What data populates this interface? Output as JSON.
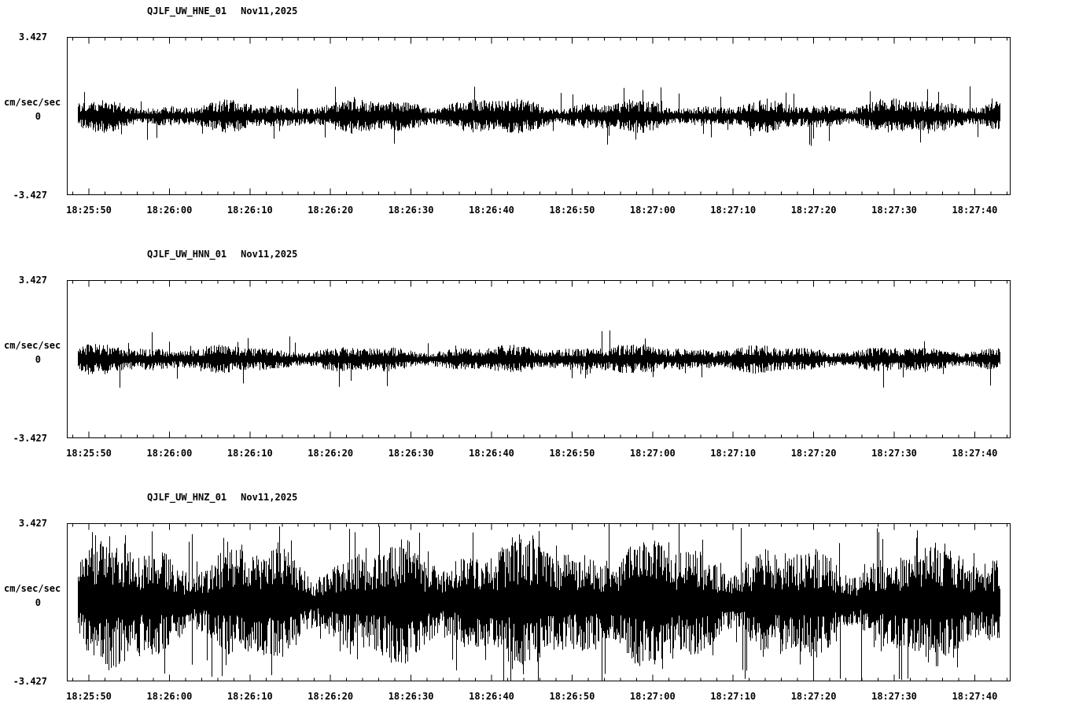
{
  "colors": {
    "trace": "#000000",
    "background": "#ffffff"
  },
  "panels": [
    {
      "title": "QJLF_UW_HNE_01",
      "date": "Nov11,2025",
      "units": "cm/sec/sec",
      "y_max_label": "3.427",
      "y_zero_label": "0",
      "y_min_label": "-3.427",
      "x_ticks": [
        "18:25:50",
        "18:26:00",
        "18:26:10",
        "18:26:20",
        "18:26:30",
        "18:26:40",
        "18:26:50",
        "18:27:00",
        "18:27:10",
        "18:27:20",
        "18:27:30",
        "18:27:40"
      ],
      "waveform": {
        "seed": 101,
        "base_amplitude": 0.38,
        "envelope_variation": 0.55,
        "spike_probability": 0.02,
        "spike_max": 1.3
      }
    },
    {
      "title": "QJLF_UW_HNN_01",
      "date": "Nov11,2025",
      "units": "cm/sec/sec",
      "y_max_label": "3.427",
      "y_zero_label": "0",
      "y_min_label": "-3.427",
      "x_ticks": [
        "18:25:50",
        "18:26:00",
        "18:26:10",
        "18:26:20",
        "18:26:30",
        "18:26:40",
        "18:26:50",
        "18:27:00",
        "18:27:10",
        "18:27:20",
        "18:27:30",
        "18:27:40"
      ],
      "waveform": {
        "seed": 202,
        "base_amplitude": 0.33,
        "envelope_variation": 0.45,
        "spike_probability": 0.012,
        "spike_max": 1.25
      }
    },
    {
      "title": "QJLF_UW_HNZ_01",
      "date": "Nov11,2025",
      "units": "cm/sec/sec",
      "y_max_label": "3.427",
      "y_zero_label": "0",
      "y_min_label": "-3.427",
      "x_ticks": [
        "18:25:50",
        "18:26:00",
        "18:26:10",
        "18:26:20",
        "18:26:30",
        "18:26:40",
        "18:26:50",
        "18:27:00",
        "18:27:10",
        "18:27:20",
        "18:27:30",
        "18:27:40"
      ],
      "waveform": {
        "seed": 303,
        "base_amplitude": 1.45,
        "envelope_variation": 0.5,
        "spike_probability": 0.045,
        "spike_max": 3.5
      }
    }
  ],
  "chart_data": [
    {
      "type": "line",
      "title": "QJLF_UW_HNE_01   Nov11,2025",
      "xlabel": "",
      "ylabel": "cm/sec/sec",
      "ylim": [
        -3.427,
        3.427
      ],
      "y_tick_labels": [
        "3.427",
        "0",
        "-3.427"
      ],
      "x_tick_labels": [
        "18:25:50",
        "18:26:00",
        "18:26:10",
        "18:26:20",
        "18:26:30",
        "18:26:40",
        "18:26:50",
        "18:27:00",
        "18:27:10",
        "18:27:20",
        "18:27:30",
        "18:27:40"
      ],
      "grid": false,
      "legend_position": "none",
      "series": [
        {
          "name": "QJLF_UW_HNE_01",
          "description": "continuous zero-mean seismic acceleration noise trace",
          "mean": 0,
          "typical_peak_amplitude": 0.45,
          "max_peak_amplitude": 1.5
        }
      ]
    },
    {
      "type": "line",
      "title": "QJLF_UW_HNN_01   Nov11,2025",
      "xlabel": "",
      "ylabel": "cm/sec/sec",
      "ylim": [
        -3.427,
        3.427
      ],
      "y_tick_labels": [
        "3.427",
        "0",
        "-3.427"
      ],
      "x_tick_labels": [
        "18:25:50",
        "18:26:00",
        "18:26:10",
        "18:26:20",
        "18:26:30",
        "18:26:40",
        "18:26:50",
        "18:27:00",
        "18:27:10",
        "18:27:20",
        "18:27:30",
        "18:27:40"
      ],
      "grid": false,
      "legend_position": "none",
      "series": [
        {
          "name": "QJLF_UW_HNN_01",
          "description": "continuous zero-mean seismic acceleration noise trace",
          "mean": 0,
          "typical_peak_amplitude": 0.4,
          "max_peak_amplitude": 1.3
        }
      ]
    },
    {
      "type": "line",
      "title": "QJLF_UW_HNZ_01   Nov11,2025",
      "xlabel": "",
      "ylabel": "cm/sec/sec",
      "ylim": [
        -3.427,
        3.427
      ],
      "y_tick_labels": [
        "3.427",
        "0",
        "-3.427"
      ],
      "x_tick_labels": [
        "18:25:50",
        "18:26:00",
        "18:26:10",
        "18:26:20",
        "18:26:30",
        "18:26:40",
        "18:26:50",
        "18:27:00",
        "18:27:10",
        "18:27:20",
        "18:27:30",
        "18:27:40"
      ],
      "grid": false,
      "legend_position": "none",
      "series": [
        {
          "name": "QJLF_UW_HNZ_01",
          "description": "continuous zero-mean seismic acceleration noise trace, much higher amplitude than horizontal channels, occasionally reaching full scale",
          "mean": 0,
          "typical_peak_amplitude": 1.6,
          "max_peak_amplitude": 3.4
        }
      ]
    }
  ]
}
